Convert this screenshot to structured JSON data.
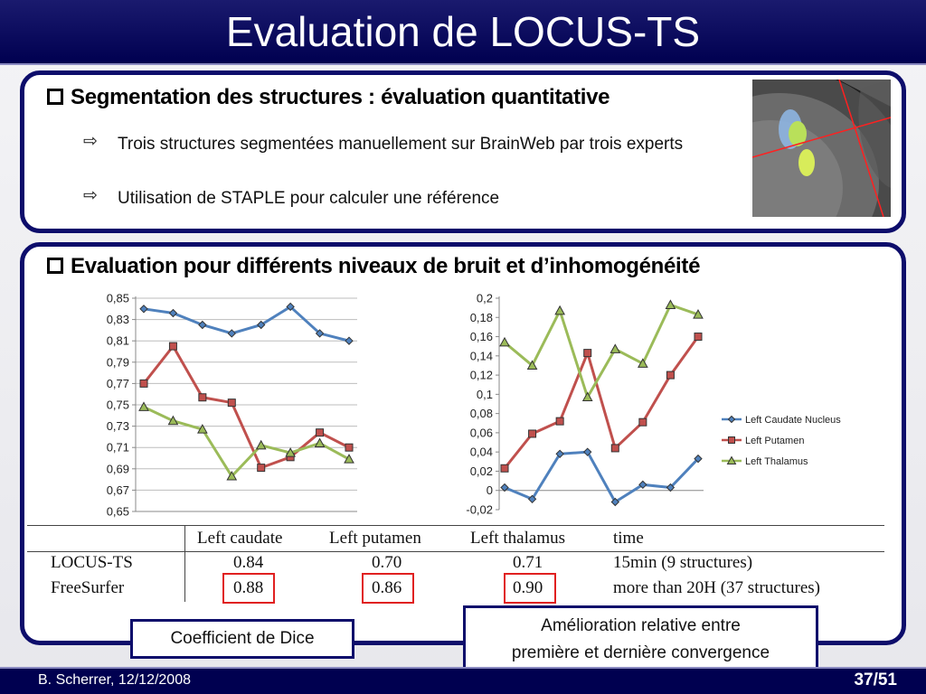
{
  "slide": {
    "title": "Evaluation de LOCUS-TS",
    "section1": {
      "heading": "Segmentation des structures : évaluation quantitative",
      "bullets": [
        "Trois structures segmentées manuellement sur BrainWeb par trois experts",
        "Utilisation de STAPLE pour calculer une référence"
      ]
    },
    "section2": {
      "heading": "Evaluation pour différents niveaux de bruit et d’inhomogénéité"
    },
    "bullet_arrow": "⇨",
    "callouts": {
      "dice": "Coefficient de Dice",
      "improvement_line1": "Amélioration relative entre",
      "improvement_line2": "première et dernière convergence"
    },
    "footer": {
      "author": "B. Scherrer, 12/12/2008",
      "page": "37/51"
    },
    "colors": {
      "frame": "#0d0d6b",
      "highlight": "#e02020"
    }
  },
  "table": {
    "headers": [
      "Left caudate",
      "Left putamen",
      "Left thalamus",
      "time"
    ],
    "rows": [
      {
        "method": "LOCUS-TS",
        "values": [
          "0.84",
          "0.70",
          "0.71"
        ],
        "time": "15min (9 structures)"
      },
      {
        "method": "FreeSurfer",
        "values": [
          "0.88",
          "0.86",
          "0.90"
        ],
        "time": "more than 20H (37 structures)"
      }
    ]
  },
  "chart_data": [
    {
      "type": "line",
      "x": [
        1,
        2,
        3,
        4,
        5,
        6,
        7,
        8
      ],
      "ylim": [
        0.65,
        0.85
      ],
      "yticks": [
        "0,65",
        "0,67",
        "0,69",
        "0,71",
        "0,73",
        "0,75",
        "0,77",
        "0,79",
        "0,81",
        "0,83",
        "0,85"
      ],
      "grid": true,
      "series": [
        {
          "color": "#4f81bd",
          "marker": "diamond",
          "values": [
            0.84,
            0.836,
            0.825,
            0.817,
            0.825,
            0.842,
            0.817,
            0.81
          ]
        },
        {
          "color": "#c0504d",
          "marker": "square",
          "values": [
            0.77,
            0.805,
            0.757,
            0.752,
            0.691,
            0.701,
            0.724,
            0.71
          ]
        },
        {
          "color": "#9bbb59",
          "marker": "triangle",
          "values": [
            0.748,
            0.735,
            0.727,
            0.683,
            0.712,
            0.705,
            0.714,
            0.699
          ]
        }
      ]
    },
    {
      "type": "line",
      "x": [
        1,
        2,
        3,
        4,
        5,
        6,
        7,
        8
      ],
      "ylim": [
        -0.02,
        0.2
      ],
      "yticks": [
        "-0,02",
        "0",
        "0,02",
        "0,04",
        "0,06",
        "0,08",
        "0,1",
        "0,12",
        "0,14",
        "0,16",
        "0,18",
        "0,2"
      ],
      "grid": false,
      "legend_position": "right",
      "series": [
        {
          "name": "Left Caudate Nucleus",
          "color": "#4f81bd",
          "marker": "diamond",
          "values": [
            0.003,
            -0.009,
            0.038,
            0.04,
            -0.012,
            0.006,
            0.003,
            0.033
          ]
        },
        {
          "name": "Left Putamen",
          "color": "#c0504d",
          "marker": "square",
          "values": [
            0.023,
            0.059,
            0.072,
            0.143,
            0.044,
            0.071,
            0.12,
            0.16
          ]
        },
        {
          "name": "Left Thalamus",
          "color": "#9bbb59",
          "marker": "triangle",
          "values": [
            0.154,
            0.13,
            0.187,
            0.097,
            0.147,
            0.132,
            0.193,
            0.183
          ]
        }
      ]
    }
  ]
}
